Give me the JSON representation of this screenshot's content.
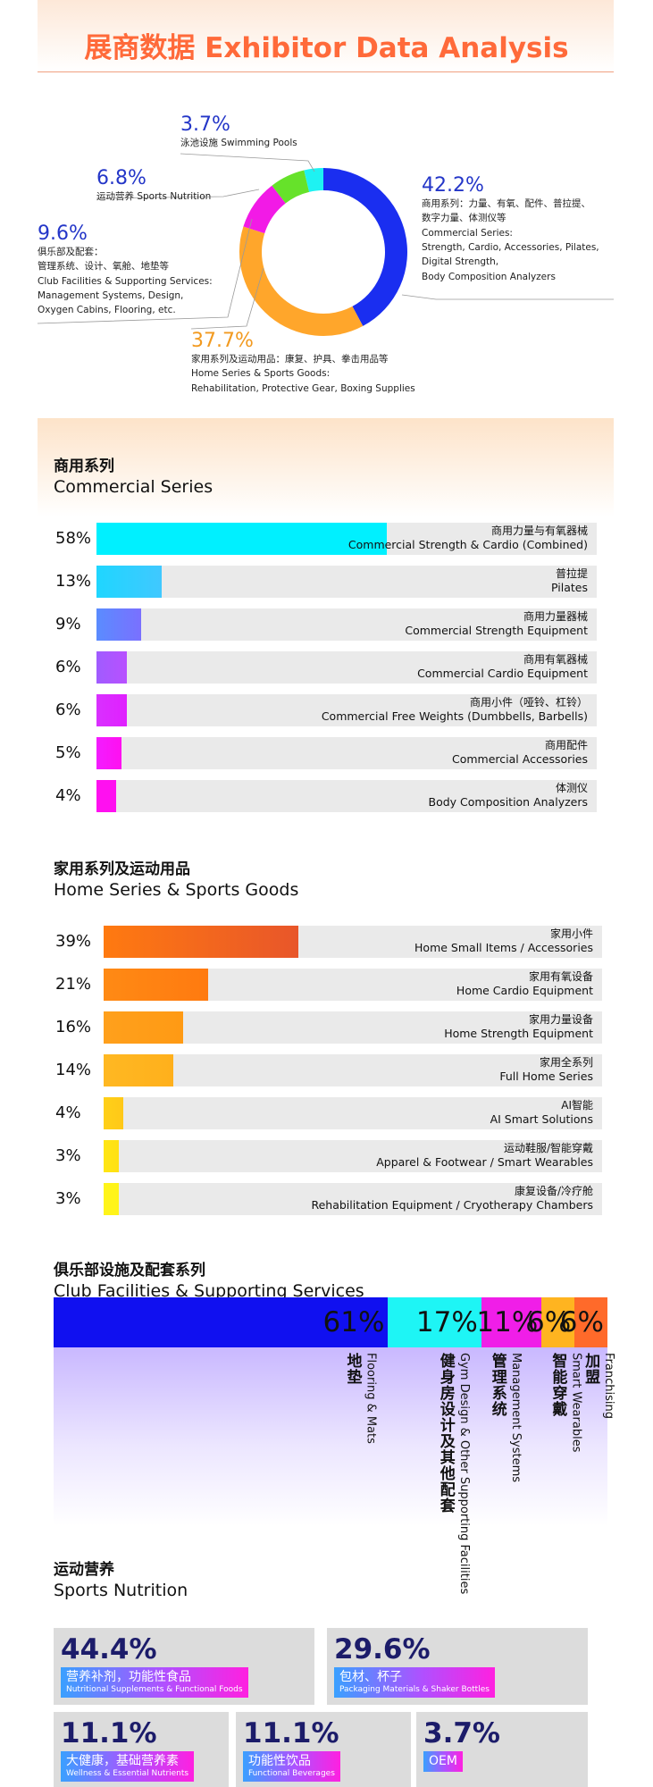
{
  "header": {
    "title": "展商数据 Exhibitor Data Analysis"
  },
  "chart_data": [
    {
      "type": "pie",
      "categories": [
        "商用系列：力量、有氧、配件、普拉提、数字力量、体测仪等",
        "家用系列及运动用品：康复、护具、拳击用品等",
        "俱乐部及配套：管理系统、设计、氧舱、地垫等",
        "运动营养 Sports Nutrition",
        "泳池设施 Swimming Pools"
      ],
      "values": [
        42.2,
        37.7,
        9.6,
        6.8,
        3.7
      ],
      "colors": [
        "#1a2ef0",
        "#ffa62b",
        "#f21ae6",
        "#66e22a",
        "#1ef2f2"
      ],
      "labels": [
        {
          "pct": "42.2%",
          "lines": [
            "商用系列：力量、有氧、配件、普拉提、",
            "数字力量、体测仪等",
            "Commercial Series:",
            "Strength, Cardio, Accessories, Pilates,",
            "Digital Strength,",
            "Body Composition Analyzers"
          ]
        },
        {
          "pct": "37.7%",
          "lines": [
            "家用系列及运动用品：康复、护具、拳击用品等",
            "Home Series & Sports Goods:",
            "Rehabilitation, Protective Gear, Boxing Supplies"
          ]
        },
        {
          "pct": "9.6%",
          "lines": [
            "俱乐部及配套：",
            "管理系统、设计、氧舱、地垫等",
            "Club Facilities & Supporting Services:",
            "Management Systems, Design,",
            "Oxygen Cabins, Flooring, etc."
          ]
        },
        {
          "pct": "6.8%",
          "lines": [
            "运动营养 Sports Nutrition"
          ]
        },
        {
          "pct": "3.7%",
          "lines": [
            "泳池设施  Swimming Pools"
          ]
        }
      ]
    },
    {
      "type": "bar",
      "title_cn": "商用系列",
      "title_en": "Commercial Series",
      "categories_cn": [
        "商用力量与有氧器械",
        "普拉提",
        "商用力量器械",
        "商用有氧器械",
        "商用小件（哑铃、杠铃）",
        "商用配件",
        "体测仪"
      ],
      "categories_en": [
        "Commercial Strength & Cardio (Combined)",
        "Pilates",
        "Commercial Strength Equipment",
        "Commercial Cardio Equipment",
        "Commercial Free Weights (Dumbbells, Barbells)",
        "Commercial Accessories",
        "Body Composition Analyzers"
      ],
      "values": [
        58,
        13,
        9,
        6,
        6,
        5,
        4
      ],
      "value_labels": [
        "58%",
        "13%",
        "9%",
        "6%",
        "6%",
        "5%",
        "4%"
      ],
      "colors": [
        "#00f0ff",
        "#1fd6ff",
        "#5a8cff",
        "#a05cff",
        "#d930ff",
        "#f31cff",
        "#ff10f0"
      ],
      "xlim": [
        0,
        100
      ]
    },
    {
      "type": "bar",
      "title_cn": "家用系列及运动用品",
      "title_en": "Home Series & Sports Goods",
      "categories_cn": [
        "家用小件",
        "家用有氧设备",
        "家用力量设备",
        "家用全系列",
        "AI智能",
        "运动鞋服/智能穿戴",
        "康复设备/冷疗舱"
      ],
      "categories_en": [
        "Home Small Items / Accessories",
        "Home Cardio Equipment",
        "Home Strength Equipment",
        "Full Home Series",
        "AI Smart Solutions",
        "Apparel & Footwear / Smart Wearables",
        "Rehabilitation Equipment / Cryotherapy Chambers"
      ],
      "values": [
        39,
        21,
        16,
        14,
        4,
        3,
        3
      ],
      "value_labels": [
        "39%",
        "21%",
        "16%",
        "14%",
        "4%",
        "3%",
        "3%"
      ],
      "colors": [
        "#ff7a10",
        "#ff8a14",
        "#ffa01c",
        "#ffb822",
        "#ffd018",
        "#ffe614",
        "#fff51a"
      ],
      "xlim": [
        0,
        100
      ]
    },
    {
      "type": "bar",
      "title_cn": "俱乐部设施及配套系列",
      "title_en": "Club Facilities & Supporting Services",
      "categories_cn": [
        "地垫",
        "健身房设计及其他配套",
        "管理系统",
        "智能穿戴",
        "加盟"
      ],
      "categories_en": [
        "Flooring & Mats",
        "Gym Design & Other Supporting Facilities",
        "Management Systems",
        "Smart Wearables",
        "Franchising"
      ],
      "values": [
        61,
        17,
        11,
        6,
        6
      ],
      "value_labels": [
        "61%",
        "17%",
        "11%",
        "6%",
        "6%"
      ],
      "colors": [
        "#1010f0",
        "#1ef5f5",
        "#f01ee8",
        "#ffb420",
        "#ff6a2a"
      ]
    },
    {
      "type": "table",
      "title_cn": "运动营养",
      "title_en": "Sports Nutrition",
      "items": [
        {
          "pct": "44.4%",
          "cn": "营养补剂，功能性食品",
          "en": "Nutritional Supplements & Functional Foods"
        },
        {
          "pct": "29.6%",
          "cn": "包材、杯子",
          "en": "Packaging Materials & Shaker Bottles"
        },
        {
          "pct": "11.1%",
          "cn": "大健康，基础营养素",
          "en": "Wellness & Essential Nutrients"
        },
        {
          "pct": "11.1%",
          "cn": "功能性饮品",
          "en": "Functional Beverages"
        },
        {
          "pct": "3.7%",
          "cn": "OEM",
          "en": ""
        }
      ],
      "values": [
        44.4,
        29.6,
        11.1,
        11.1,
        3.7
      ]
    }
  ]
}
